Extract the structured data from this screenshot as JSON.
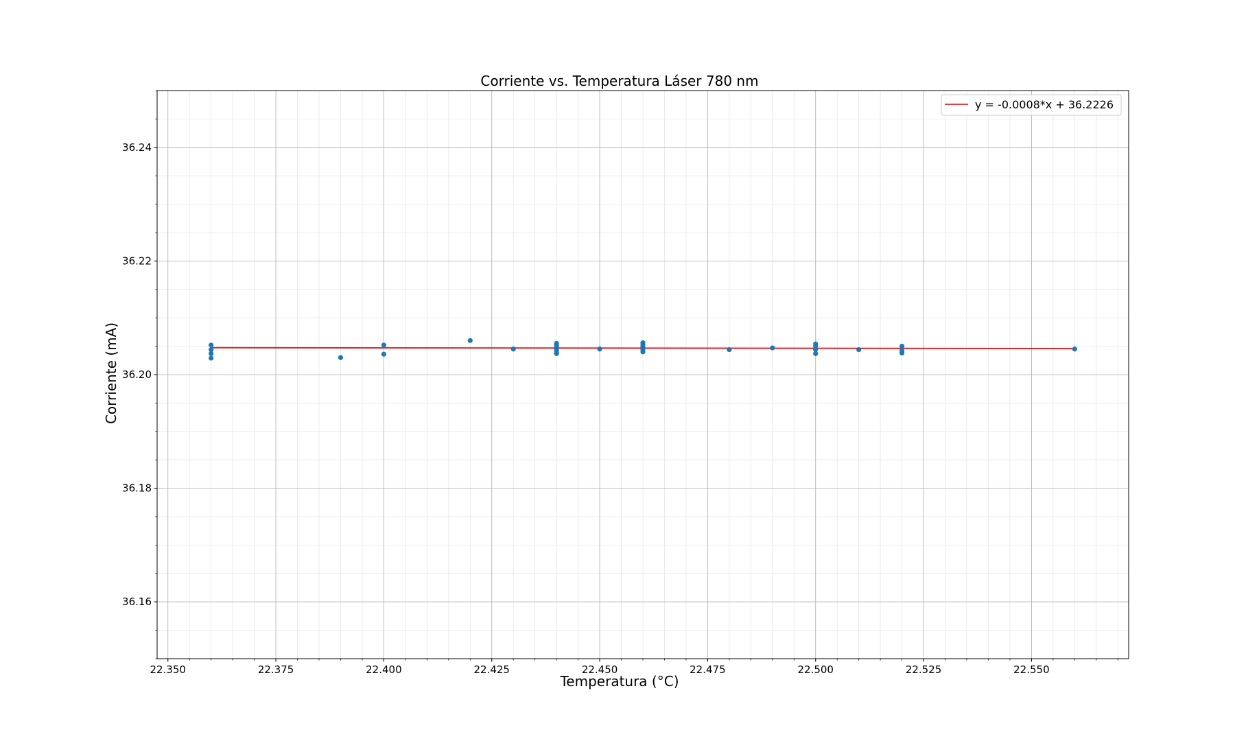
{
  "chart_data": {
    "type": "scatter",
    "title": "Corriente vs. Temperatura Láser 780 nm",
    "xlabel": "Temperatura (°C)",
    "ylabel": "Corriente (mA)",
    "xlim": [
      22.3475,
      22.5725
    ],
    "ylim": [
      36.15,
      36.25
    ],
    "x_ticks": [
      22.35,
      22.375,
      22.4,
      22.425,
      22.45,
      22.475,
      22.5,
      22.525,
      22.55
    ],
    "x_tick_labels": [
      "22.350",
      "22.375",
      "22.400",
      "22.425",
      "22.450",
      "22.475",
      "22.500",
      "22.525",
      "22.550"
    ],
    "y_ticks": [
      36.16,
      36.18,
      36.2,
      36.22,
      36.24
    ],
    "y_tick_labels": [
      "36.16",
      "36.18",
      "36.20",
      "36.22",
      "36.24"
    ],
    "grid": true,
    "minor_grid": true,
    "legend_position": "upper right",
    "series": [
      {
        "type": "scatter",
        "color": "#1f77b4",
        "points": [
          {
            "x": 22.36,
            "y": 36.2052
          },
          {
            "x": 22.36,
            "y": 36.2044
          },
          {
            "x": 22.36,
            "y": 36.2037
          },
          {
            "x": 22.36,
            "y": 36.2029
          },
          {
            "x": 22.39,
            "y": 36.203
          },
          {
            "x": 22.4,
            "y": 36.2052
          },
          {
            "x": 22.4,
            "y": 36.2036
          },
          {
            "x": 22.42,
            "y": 36.206
          },
          {
            "x": 22.43,
            "y": 36.2045
          },
          {
            "x": 22.44,
            "y": 36.2055
          },
          {
            "x": 22.44,
            "y": 36.2052
          },
          {
            "x": 22.44,
            "y": 36.2048
          },
          {
            "x": 22.44,
            "y": 36.2044
          },
          {
            "x": 22.44,
            "y": 36.204
          },
          {
            "x": 22.44,
            "y": 36.2037
          },
          {
            "x": 22.45,
            "y": 36.2045
          },
          {
            "x": 22.46,
            "y": 36.2056
          },
          {
            "x": 22.46,
            "y": 36.2052
          },
          {
            "x": 22.46,
            "y": 36.2048
          },
          {
            "x": 22.46,
            "y": 36.2044
          },
          {
            "x": 22.46,
            "y": 36.204
          },
          {
            "x": 22.48,
            "y": 36.2044
          },
          {
            "x": 22.49,
            "y": 36.2047
          },
          {
            "x": 22.5,
            "y": 36.2054
          },
          {
            "x": 22.5,
            "y": 36.205
          },
          {
            "x": 22.5,
            "y": 36.2044
          },
          {
            "x": 22.5,
            "y": 36.2037
          },
          {
            "x": 22.51,
            "y": 36.2044
          },
          {
            "x": 22.52,
            "y": 36.205
          },
          {
            "x": 22.52,
            "y": 36.2042
          },
          {
            "x": 22.52,
            "y": 36.2038
          },
          {
            "x": 22.56,
            "y": 36.2045
          }
        ]
      },
      {
        "type": "line",
        "name": "y = -0.0008*x + 36.2226",
        "color": "#d62728",
        "x": [
          22.36,
          22.56
        ],
        "y": [
          36.20474,
          36.20458
        ]
      }
    ]
  }
}
